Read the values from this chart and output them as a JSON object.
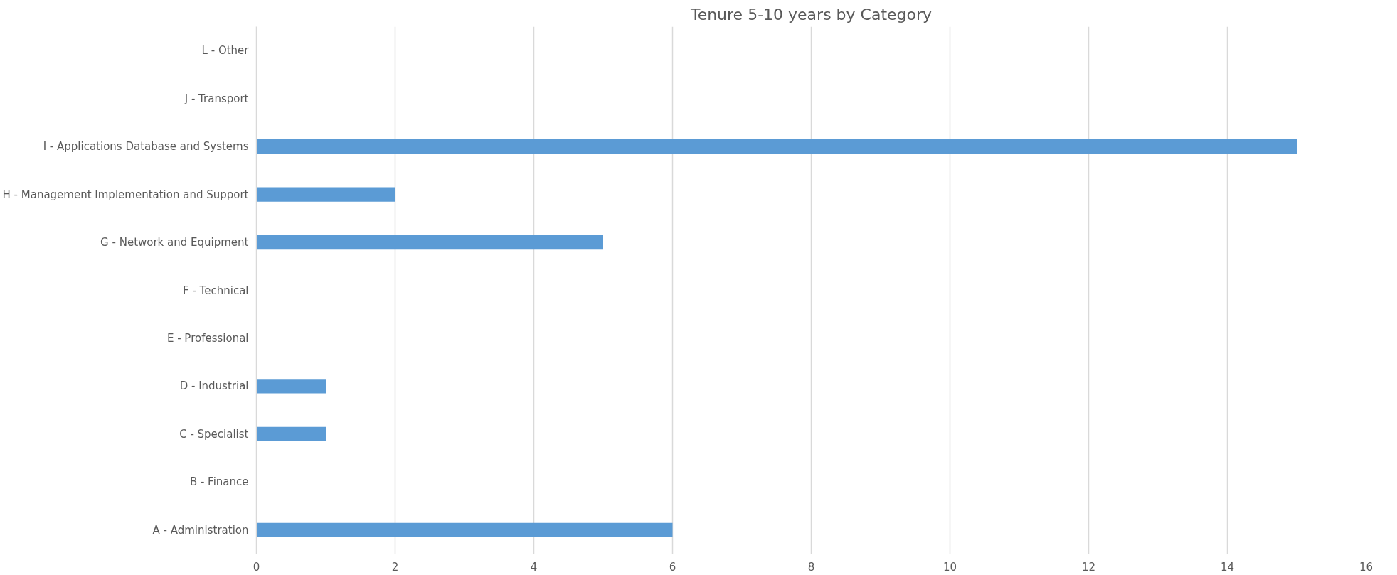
{
  "chart_data": {
    "type": "bar",
    "orientation": "horizontal",
    "title": "Tenure 5-10 years by Category",
    "categories": [
      "L - Other",
      "J - Transport",
      "I - Applications Database and Systems",
      "H - Management Implementation and Support",
      "G - Network and Equipment",
      "F - Technical",
      "E - Professional",
      "D - Industrial",
      "C - Specialist",
      "B - Finance",
      "A - Administration"
    ],
    "values": [
      0,
      0,
      15,
      2,
      5,
      0,
      0,
      1,
      1,
      0,
      6
    ],
    "color": "#5b9bd5",
    "xlim": [
      0,
      16
    ],
    "xticks": [
      0,
      2,
      4,
      6,
      8,
      10,
      12,
      14,
      16
    ],
    "grid": "x"
  }
}
